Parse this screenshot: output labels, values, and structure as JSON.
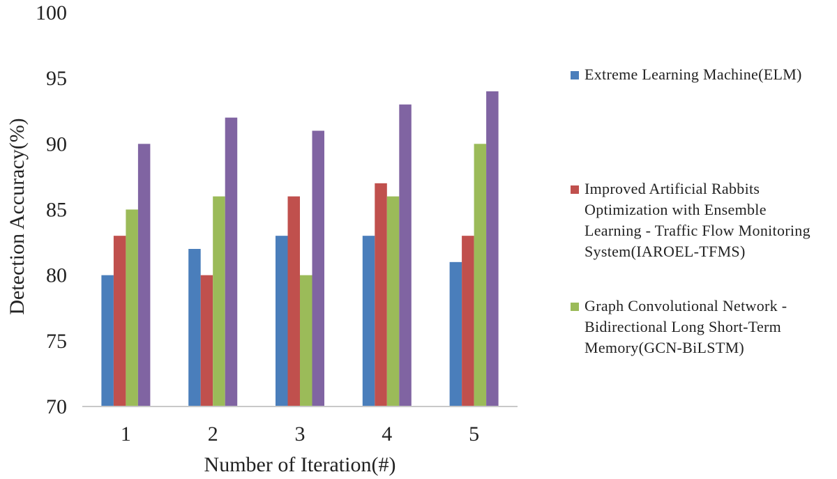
{
  "chart_data": {
    "type": "bar",
    "title": "",
    "xlabel": "Number of Iteration(#)",
    "ylabel": "Detection Accuracy(%)",
    "ylim": [
      70,
      100
    ],
    "yticks": [
      "70",
      "75",
      "80",
      "85",
      "90",
      "95",
      "100"
    ],
    "categories": [
      "1",
      "2",
      "3",
      "4",
      "5"
    ],
    "grid": false,
    "legend_position": "right",
    "series": [
      {
        "name": "Extreme Learning Machine(ELM)",
        "color": "#4a7ebb",
        "values": [
          80,
          82,
          83,
          83,
          81
        ]
      },
      {
        "name": "Improved Artificial Rabbits Optimization with Ensemble Learning - Traffic Flow Monitoring System(IAROEL-TFMS)",
        "color": "#c0504d",
        "values": [
          83,
          80,
          86,
          87,
          83
        ]
      },
      {
        "name": "Graph Convolutional Network - Bidirectional Long Short-Term Memory(GCN-BiLSTM)",
        "color": "#9bbb59",
        "values": [
          85,
          86,
          80,
          86,
          90
        ]
      },
      {
        "name": "",
        "color": "#8064a2",
        "values": [
          90,
          92,
          91,
          93,
          94
        ]
      }
    ]
  }
}
